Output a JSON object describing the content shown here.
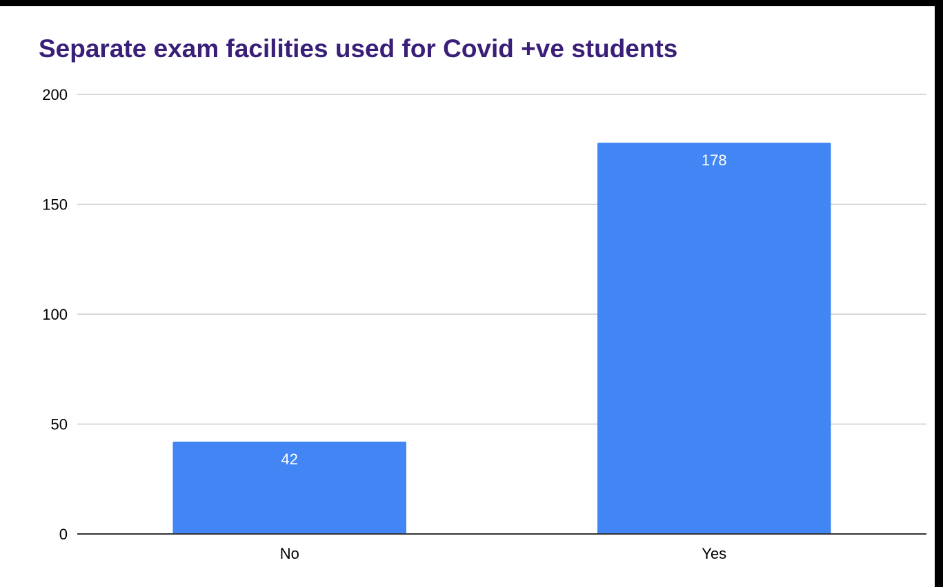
{
  "chart_data": {
    "type": "bar",
    "title": "Separate exam facilities used for Covid +ve students",
    "xlabel": "",
    "ylabel": "",
    "categories": [
      "No",
      "Yes"
    ],
    "values": [
      42,
      178
    ],
    "data_labels": [
      "42",
      "178"
    ],
    "ylim": [
      0,
      200
    ],
    "yticks": [
      0,
      50,
      100,
      150,
      200
    ],
    "grid": true,
    "legend": "none"
  },
  "colors": {
    "bar": "#4285f4",
    "title": "#3a1f78",
    "grid": "#cccccc",
    "axis": "#333333",
    "background": "#ffffff",
    "frame": "#000000"
  }
}
